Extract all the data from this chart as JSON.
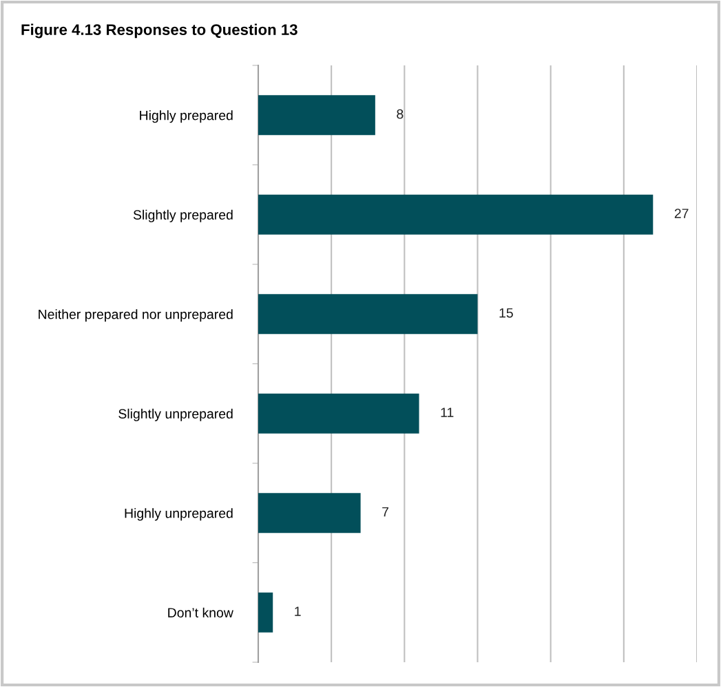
{
  "chart_data": {
    "type": "bar",
    "orientation": "horizontal",
    "title": "Figure 4.13 Responses to Question 13",
    "categories": [
      "Highly prepared",
      "Slightly prepared",
      "Neither prepared nor unprepared",
      "Slightly unprepared",
      "Highly unprepared",
      "Don’t know"
    ],
    "values": [
      8,
      27,
      15,
      11,
      7,
      1
    ],
    "color": "#024f5a",
    "data_labels": true,
    "xlim": [
      0,
      30
    ],
    "xticks": [
      {
        "value": 0,
        "label": null
      },
      {
        "value": 5,
        "label": null
      },
      {
        "value": 10,
        "label": null
      },
      {
        "value": 15,
        "label": null
      },
      {
        "value": 20,
        "label": null
      },
      {
        "value": 25,
        "label": null
      },
      {
        "value": 30,
        "label": null
      }
    ],
    "grid": "x",
    "tick_labels": "y",
    "legend": false
  }
}
